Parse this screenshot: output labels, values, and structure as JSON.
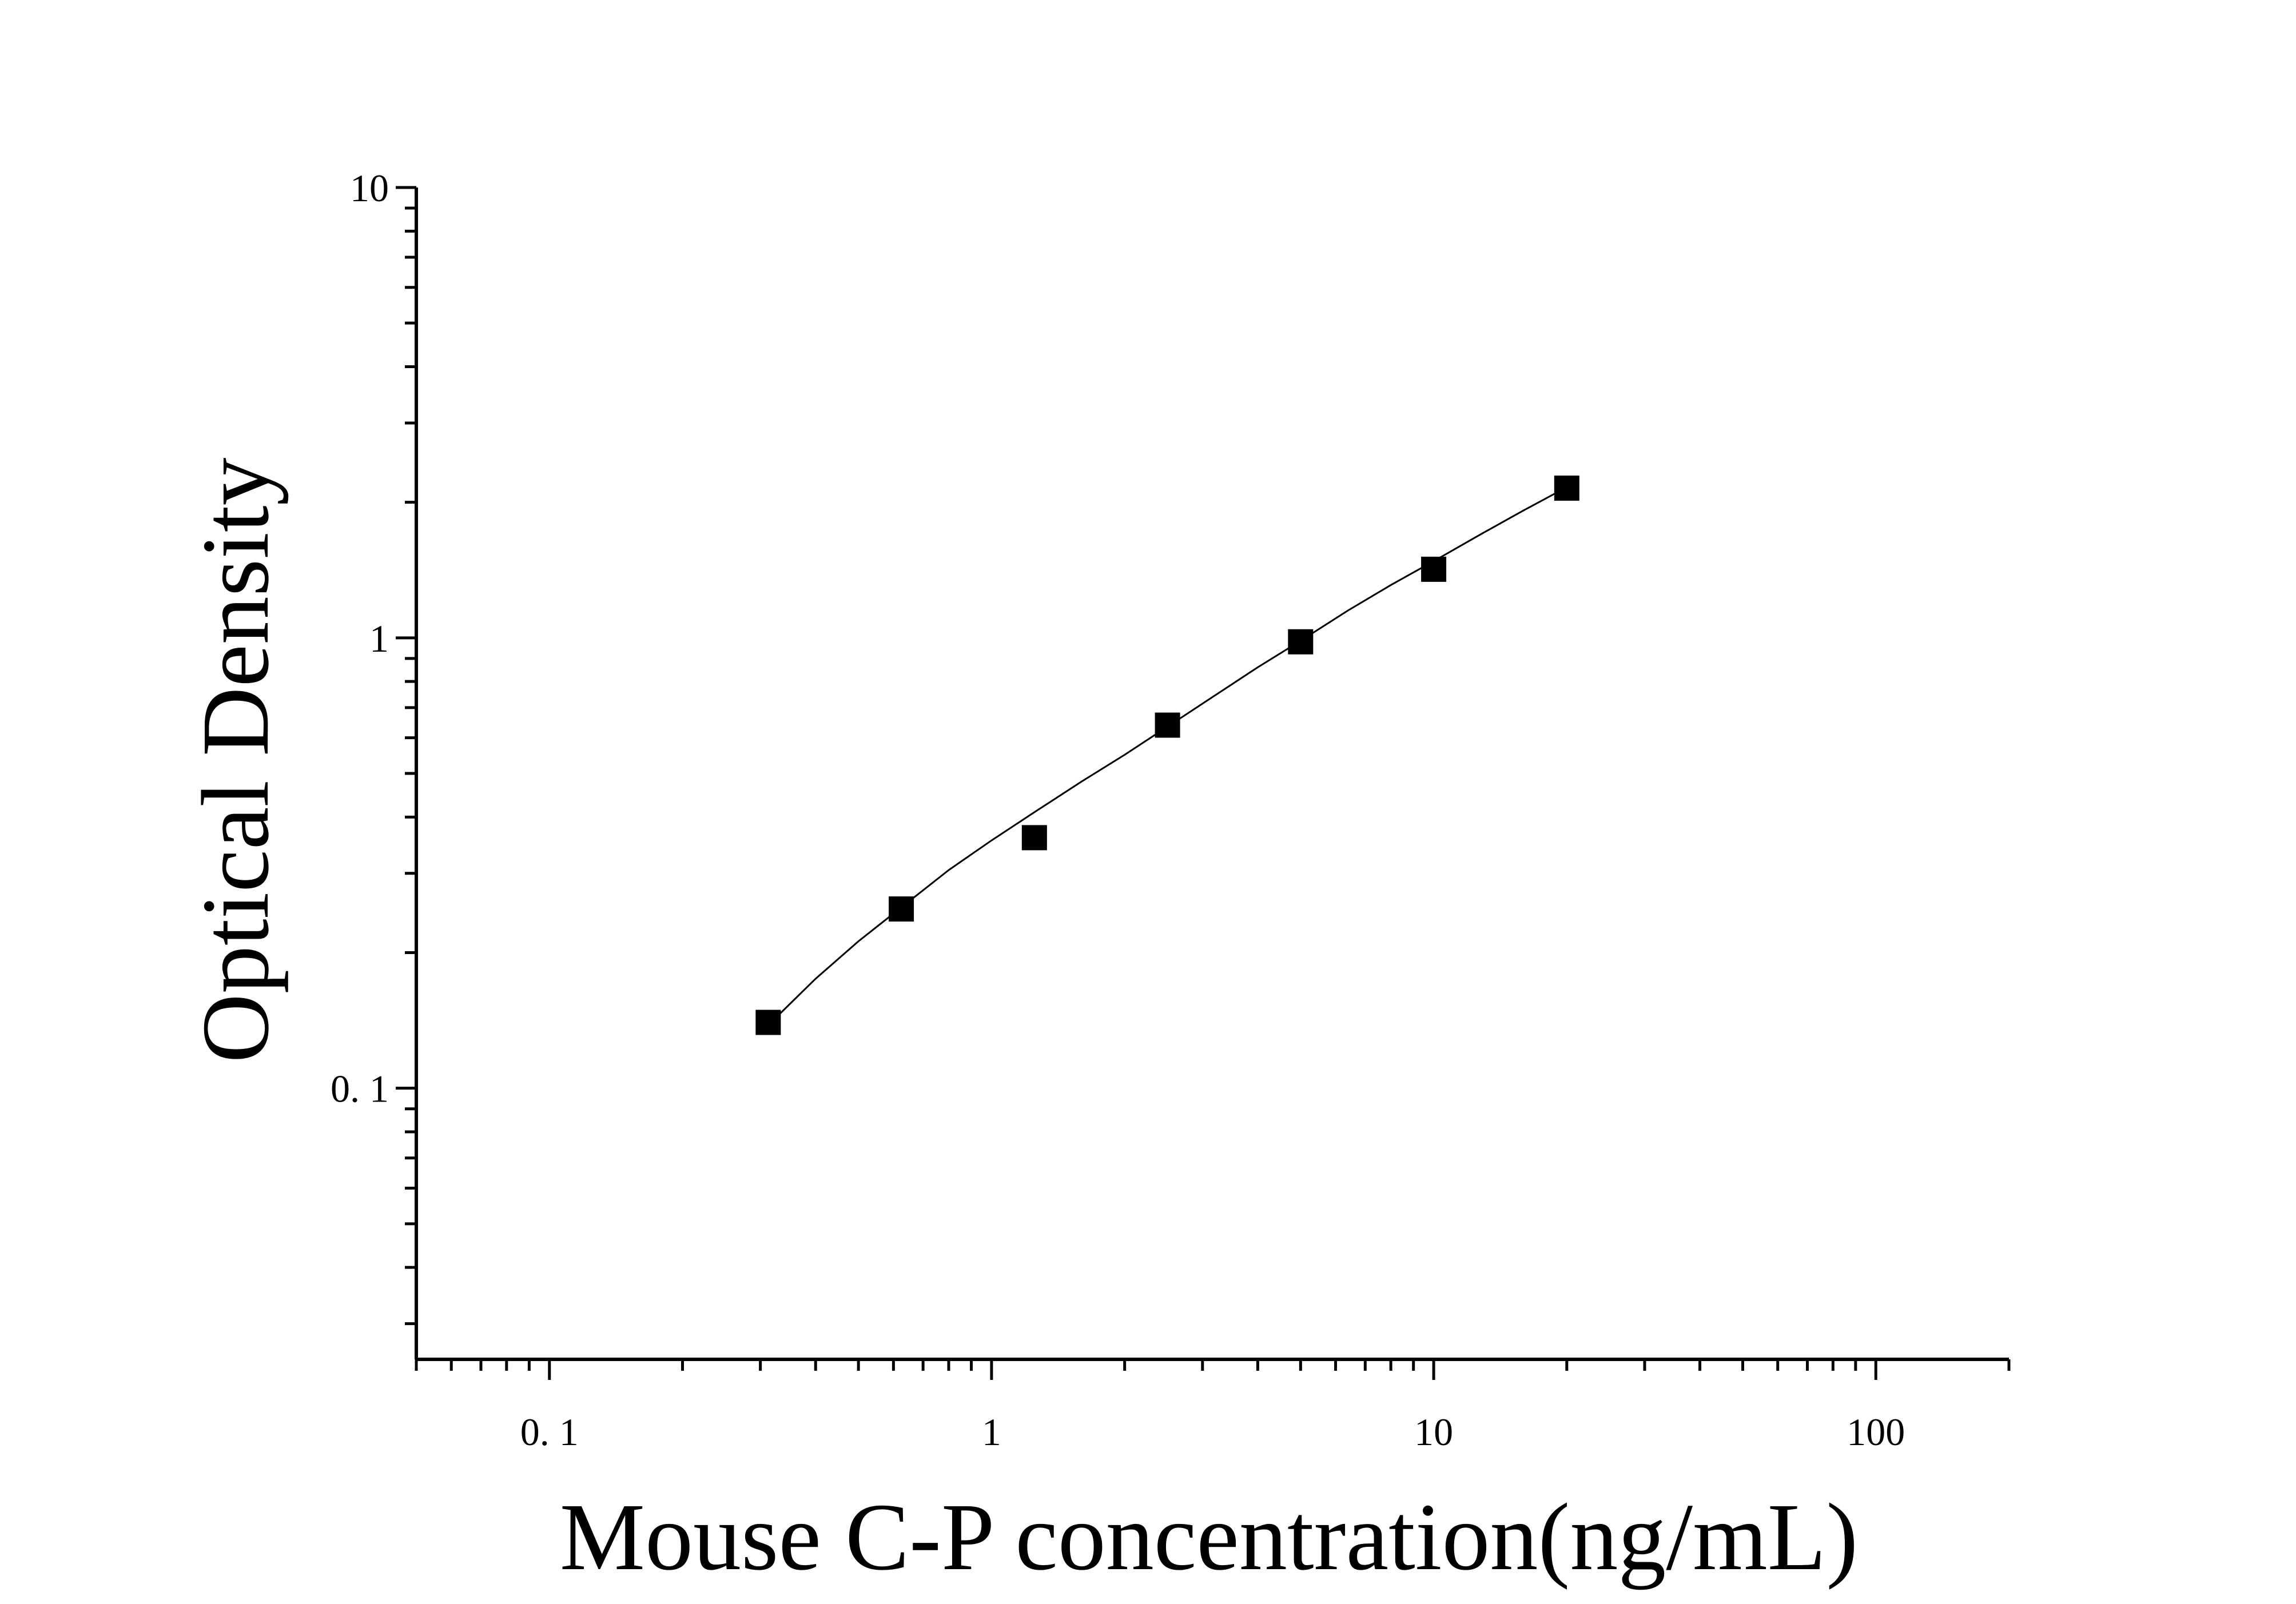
{
  "chart_data": {
    "type": "scatter",
    "title": "",
    "xlabel": "Mouse C-P concentration(ng/mL)",
    "ylabel": "Optical Density",
    "x_scale": "log",
    "y_scale": "log",
    "xlim": [
      0.05,
      200
    ],
    "ylim": [
      0.025,
      10
    ],
    "x_ticks": [
      {
        "value": 0.1,
        "label": "0. 1"
      },
      {
        "value": 1,
        "label": "1"
      },
      {
        "value": 10,
        "label": "10"
      },
      {
        "value": 100,
        "label": "100"
      }
    ],
    "y_ticks": [
      {
        "value": 0.1,
        "label": "0. 1"
      },
      {
        "value": 1,
        "label": "1"
      },
      {
        "value": 10,
        "label": "10"
      }
    ],
    "grid": false,
    "legend": "none",
    "series": [
      {
        "marker": "square",
        "color": "#000000",
        "x": [
          0.3125,
          0.625,
          1.25,
          2.5,
          5,
          10,
          20
        ],
        "y": [
          0.14,
          0.25,
          0.36,
          0.64,
          0.98,
          1.42,
          2.15
        ]
      }
    ],
    "fit_curve": {
      "color": "#000000",
      "x": [
        0.3125,
        0.4,
        0.5,
        0.625,
        0.8,
        1.0,
        1.25,
        1.6,
        2.0,
        2.5,
        3.2,
        4.0,
        5.0,
        6.4,
        8.0,
        10,
        12.8,
        16,
        20
      ],
      "y": [
        0.138,
        0.175,
        0.212,
        0.252,
        0.305,
        0.355,
        0.41,
        0.48,
        0.55,
        0.635,
        0.745,
        0.86,
        0.985,
        1.15,
        1.31,
        1.48,
        1.7,
        1.92,
        2.16
      ]
    }
  }
}
